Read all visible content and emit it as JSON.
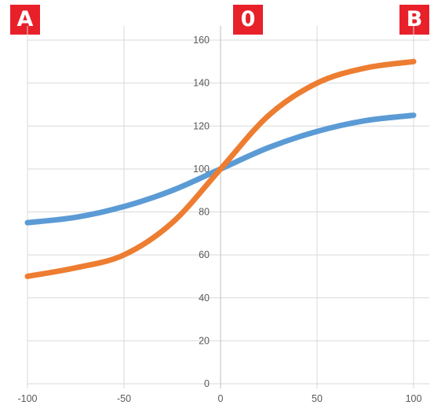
{
  "markers": {
    "left": "A",
    "center": "0",
    "right": "B"
  },
  "colors": {
    "marker_bg": "#e8202a",
    "series_blue": "#5b9bd5",
    "series_orange": "#ed7d31",
    "grid": "#d9d9d9"
  },
  "chart_data": {
    "type": "line",
    "title": "",
    "xlabel": "",
    "ylabel": "",
    "xlim": [
      -100,
      100
    ],
    "ylim": [
      0,
      160
    ],
    "x_ticks": [
      -100,
      -50,
      0,
      50,
      100
    ],
    "y_ticks": [
      0,
      20,
      40,
      60,
      80,
      100,
      120,
      140,
      160
    ],
    "grid": true,
    "legend": "none",
    "series": [
      {
        "color": "#5b9bd5",
        "points": [
          [
            -100,
            75
          ],
          [
            -75,
            77.5
          ],
          [
            -50,
            82.5
          ],
          [
            -25,
            90
          ],
          [
            0,
            100
          ],
          [
            25,
            110
          ],
          [
            50,
            117.5
          ],
          [
            75,
            122.5
          ],
          [
            100,
            125
          ]
        ]
      },
      {
        "color": "#ed7d31",
        "points": [
          [
            -100,
            50
          ],
          [
            -75,
            54
          ],
          [
            -50,
            60
          ],
          [
            -25,
            75
          ],
          [
            0,
            100
          ],
          [
            25,
            125
          ],
          [
            50,
            140
          ],
          [
            75,
            147
          ],
          [
            100,
            150
          ]
        ]
      }
    ]
  }
}
